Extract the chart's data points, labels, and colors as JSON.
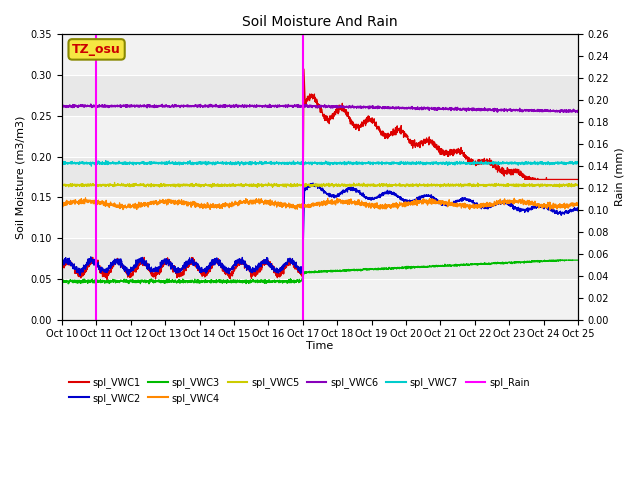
{
  "title": "Soil Moisture And Rain",
  "xlabel": "Time",
  "ylabel_left": "Soil Moisture (m3/m3)",
  "ylabel_right": "Rain (mm)",
  "xlim": [
    0,
    15
  ],
  "ylim_left": [
    0,
    0.35
  ],
  "ylim_right": [
    0,
    0.26
  ],
  "xtick_labels": [
    "Oct 10",
    "Oct 11",
    "Oct 12",
    "Oct 13",
    "Oct 14",
    "Oct 15",
    "Oct 16",
    "Oct 17",
    "Oct 18",
    "Oct 19",
    "Oct 20",
    "Oct 21",
    "Oct 22",
    "Oct 23",
    "Oct 24",
    "Oct 25"
  ],
  "vline1_x": 1.0,
  "vline2_x": 7.0,
  "annotation_label": "TZ_osu",
  "background_color": "#e8e8e8",
  "colors": {
    "VWC1": "#dd0000",
    "VWC2": "#0000cc",
    "VWC3": "#00bb00",
    "VWC4": "#ff8800",
    "VWC5": "#cccc00",
    "VWC6": "#8800bb",
    "VWC7": "#00cccc",
    "Rain": "#ff00ff"
  },
  "yticks_left": [
    0.0,
    0.05,
    0.1,
    0.15,
    0.2,
    0.25,
    0.3,
    0.35
  ],
  "yticks_right": [
    0.0,
    0.02,
    0.04,
    0.06,
    0.08,
    0.1,
    0.12,
    0.14,
    0.16,
    0.18,
    0.2,
    0.22,
    0.24,
    0.26
  ]
}
